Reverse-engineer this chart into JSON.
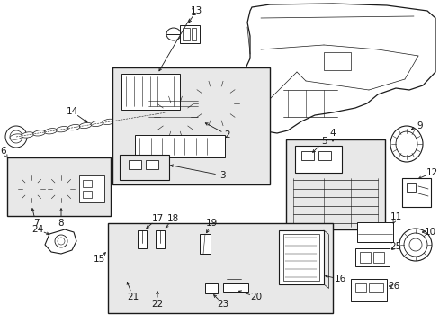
{
  "bg_color": "#ffffff",
  "line_color": "#1a1a1a",
  "gray_fill": "#e8e8e8",
  "fig_w": 4.89,
  "fig_h": 3.6,
  "dpi": 100
}
